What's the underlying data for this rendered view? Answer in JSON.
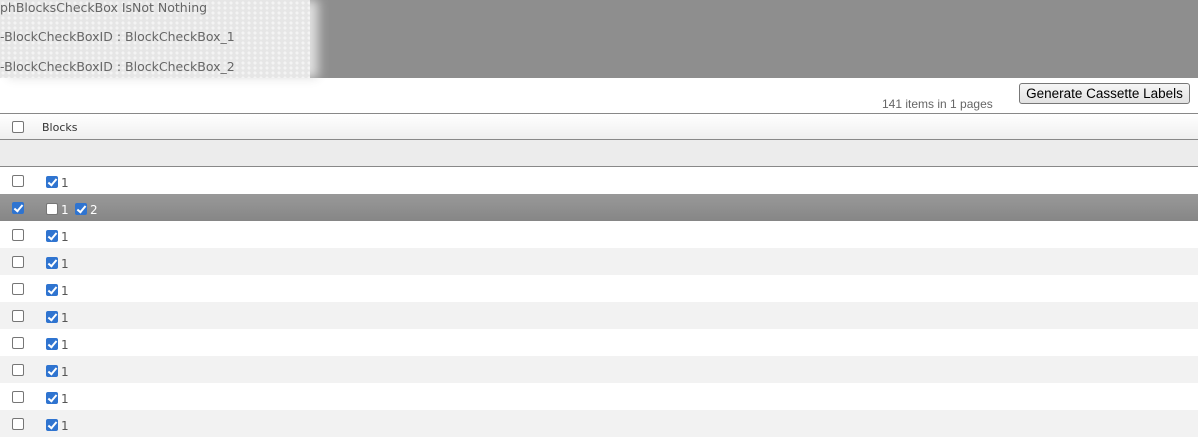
{
  "banner": {
    "lines": [
      "phBlocksCheckBox IsNot Nothing",
      "-BlockCheckBoxID : BlockCheckBox_1",
      "-BlockCheckBoxID : BlockCheckBox_2"
    ]
  },
  "toolbar": {
    "generate_label": "Generate Cassette Labels",
    "count_text": "141 items in 1 pages"
  },
  "table": {
    "header": {
      "blocks": "Blocks",
      "select_all": false
    },
    "rows": [
      {
        "selected": false,
        "blocks": [
          {
            "label": "1",
            "checked": true
          }
        ]
      },
      {
        "selected": true,
        "blocks": [
          {
            "label": "1",
            "checked": false
          },
          {
            "label": "2",
            "checked": true
          }
        ]
      },
      {
        "selected": false,
        "blocks": [
          {
            "label": "1",
            "checked": true
          }
        ]
      },
      {
        "selected": false,
        "blocks": [
          {
            "label": "1",
            "checked": true
          }
        ]
      },
      {
        "selected": false,
        "blocks": [
          {
            "label": "1",
            "checked": true
          }
        ]
      },
      {
        "selected": false,
        "blocks": [
          {
            "label": "1",
            "checked": true
          }
        ]
      },
      {
        "selected": false,
        "blocks": [
          {
            "label": "1",
            "checked": true
          }
        ]
      },
      {
        "selected": false,
        "blocks": [
          {
            "label": "1",
            "checked": true
          }
        ]
      },
      {
        "selected": false,
        "blocks": [
          {
            "label": "1",
            "checked": true
          }
        ]
      },
      {
        "selected": false,
        "blocks": [
          {
            "label": "1",
            "checked": true
          }
        ]
      }
    ]
  },
  "colors": {
    "checkbox_checked": "#2f74d0",
    "selected_row": "#8e8e8e"
  }
}
